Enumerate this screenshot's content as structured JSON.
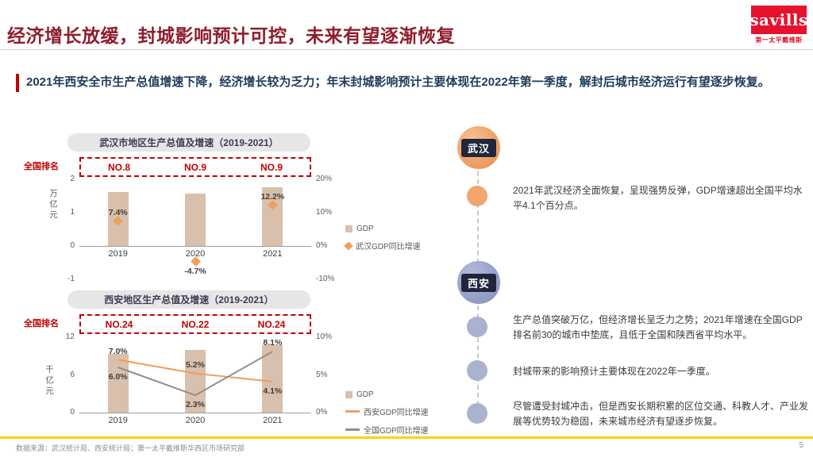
{
  "page": {
    "title": "经济增长放缓，封城影响预计可控，未来有望逐渐恢复",
    "intro": "2021年西安全市生产总值增速下降，经济增长较为乏力；年末封城影响预计主要体现在2022年第一季度，解封后城市经济运行有望逐步恢复。",
    "logo": {
      "brand": "savills",
      "brand_cn": "第一太平戴维斯"
    },
    "footer": {
      "source": "数据来源：武汉统计局、西安统计局；第一太平戴维斯华西区市场研究部",
      "page_number": "5"
    }
  },
  "colors": {
    "title_red": "#8F1D2C",
    "accent_red": "#C00000",
    "logo_red": "#E8112D",
    "bar_tan": "#D8C0AC",
    "orange": "#EF9F5D",
    "gray_line": "#8F8F8F",
    "navy_text": "#1F3B5C",
    "tag_navy": "#20263B",
    "wuhan_circle": "#EA8C47",
    "xian_circle": "#828EBE",
    "yellow_rule": "#FFD100"
  },
  "timeline": {
    "wuhan": {
      "city": "武汉",
      "points": [
        "2021年武汉经济全面恢复，呈现强势反弹，GDP增速超出全国平均水平4.1个百分点。"
      ]
    },
    "xian": {
      "city": "西安",
      "points": [
        "生产总值突破万亿，但经济增长呈乏力之势；2021年增速在全国GDP排名前30的城市中垫底，且低于全国和陕西省平均水平。",
        "封城带来的影响预计主要体现在2022年一季度。",
        "尽管遭受封城冲击，但是西安长期积累的区位交通、科教人才、产业发展等优势较为稳固，未来城市经济有望逐步恢复。"
      ]
    }
  },
  "chart_data": [
    {
      "id": "wuhan-gdp",
      "type": "bar",
      "title": "武汉市地区生产总值及增速（2019-2021）",
      "ranking_label": "全国排名",
      "rankings": [
        "NO.8",
        "NO.9",
        "NO.9"
      ],
      "categories": [
        "2019",
        "2020",
        "2021"
      ],
      "left_axis": {
        "label": "万亿元",
        "min": -1,
        "max": 2,
        "ticks": [
          2,
          1,
          0,
          -1
        ]
      },
      "right_axis": {
        "suffix": "%",
        "min": -10,
        "max": 20,
        "ticks": [
          20,
          10,
          0,
          -10
        ]
      },
      "legend_position": "right",
      "grid": false,
      "series": [
        {
          "name": "GDP",
          "type": "bar",
          "axis": "left",
          "color": "#D8C0AC",
          "values": [
            1.62,
            1.56,
            1.77
          ]
        },
        {
          "name": "武汉GDP同比增速",
          "type": "diamond",
          "axis": "right",
          "color": "#EF9F5D",
          "values": [
            7.4,
            -4.7,
            12.2
          ],
          "labels": [
            "7.4%",
            "-4.7%",
            "12.2%"
          ],
          "label_side": [
            "above",
            "below",
            "above"
          ]
        }
      ]
    },
    {
      "id": "xian-gdp",
      "type": "bar",
      "title": "西安地区生产总值及增速（2019-2021）",
      "ranking_label": "全国排名",
      "rankings": [
        "NO.24",
        "NO.22",
        "NO.24"
      ],
      "categories": [
        "2019",
        "2020",
        "2021"
      ],
      "left_axis": {
        "label": "千亿元",
        "min": 0,
        "max": 12,
        "ticks": [
          12,
          6,
          0
        ]
      },
      "right_axis": {
        "suffix": "%",
        "min": 0,
        "max": 10,
        "ticks": [
          10,
          5,
          0
        ]
      },
      "legend_position": "right",
      "grid": false,
      "series": [
        {
          "name": "GDP",
          "type": "bar",
          "axis": "left",
          "color": "#D8C0AC",
          "values": [
            9.3,
            10.0,
            10.7
          ]
        },
        {
          "name": "西安GDP同比增速",
          "type": "line",
          "axis": "right",
          "color": "#EF9F5D",
          "values": [
            7.0,
            5.2,
            4.1
          ],
          "labels": [
            "7.0%",
            "5.2%",
            "4.1%"
          ],
          "label_side": [
            "above",
            "above",
            "below"
          ]
        },
        {
          "name": "全国GDP同比增速",
          "type": "line",
          "axis": "right",
          "color": "#8F8F8F",
          "values": [
            6.0,
            2.3,
            8.1
          ],
          "labels": [
            "6.0%",
            "2.3%",
            "8.1%"
          ],
          "label_side": [
            "below",
            "below",
            "above"
          ]
        }
      ]
    }
  ]
}
